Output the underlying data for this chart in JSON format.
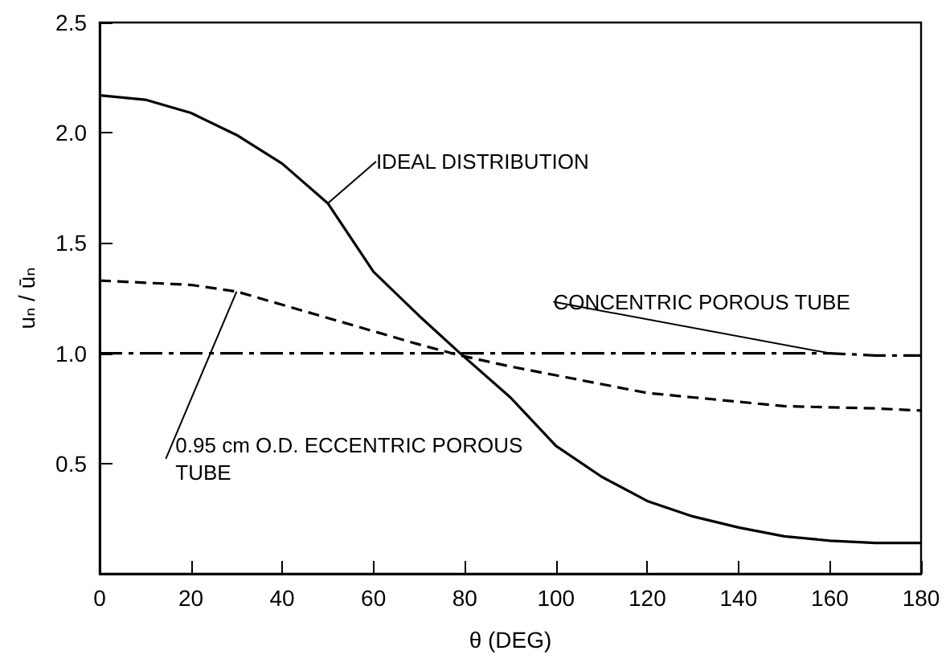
{
  "chart_data": {
    "type": "line",
    "xlabel": "θ (DEG)",
    "ylabel": "uₙ / ūₙ",
    "x": [
      0,
      10,
      20,
      30,
      40,
      50,
      60,
      70,
      79,
      90,
      100,
      110,
      120,
      130,
      140,
      150,
      160,
      170,
      180
    ],
    "series": [
      {
        "name": "IDEAL DISTRIBUTION",
        "color": "#000000",
        "line_style": "solid",
        "values": [
          2.17,
          2.15,
          2.09,
          1.99,
          1.86,
          1.68,
          1.37,
          1.17,
          1.0,
          0.8,
          0.58,
          0.44,
          0.33,
          0.26,
          0.21,
          0.17,
          0.15,
          0.14,
          0.14
        ]
      },
      {
        "name": "0.95 cm O.D. ECCENTRIC POROUS TUBE",
        "color": "#000000",
        "line_style": "dashed",
        "values": [
          1.33,
          1.32,
          1.31,
          1.28,
          1.22,
          1.16,
          1.1,
          1.04,
          0.99,
          0.94,
          0.9,
          0.86,
          0.82,
          0.8,
          0.78,
          0.76,
          0.755,
          0.75,
          0.74
        ]
      },
      {
        "name": "CONCENTRIC POROUS TUBE",
        "color": "#000000",
        "line_style": "dashdot",
        "values": [
          1.0,
          1.0,
          1.0,
          1.0,
          1.0,
          1.0,
          1.0,
          1.0,
          1.0,
          1.0,
          1.0,
          1.0,
          1.0,
          1.0,
          1.0,
          1.0,
          1.0,
          0.99,
          0.99
        ]
      }
    ],
    "xlim": [
      0,
      180
    ],
    "xticks": [
      0,
      20,
      40,
      60,
      80,
      100,
      120,
      140,
      160,
      180
    ],
    "ylim": [
      0,
      2.5
    ],
    "yticks": [
      {
        "value": 0.5,
        "label": "0.5"
      },
      {
        "value": 1,
        "label": "1.0"
      },
      {
        "value": 1.5,
        "label": "1.5"
      },
      {
        "value": 2,
        "label": "2.0"
      },
      {
        "value": 2.5,
        "label": "2.5"
      }
    ],
    "grid": false,
    "legend": false,
    "marker": "none"
  }
}
